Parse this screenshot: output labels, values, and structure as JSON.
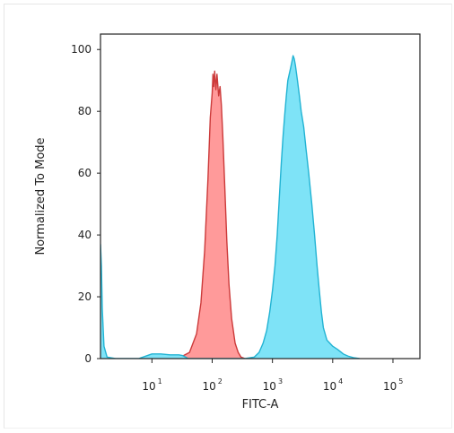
{
  "chart_data": {
    "type": "area",
    "title": "",
    "xlabel": "FITC-A",
    "ylabel": "Normalized To Mode",
    "xscale": "log",
    "xlim": [
      1.4,
      280000
    ],
    "ylim": [
      0,
      105
    ],
    "grid": false,
    "legend": "none",
    "y_ticks": [
      {
        "value": 0,
        "label": "0"
      },
      {
        "value": 20,
        "label": "20"
      },
      {
        "value": 40,
        "label": "40"
      },
      {
        "value": 60,
        "label": "60"
      },
      {
        "value": 80,
        "label": "80"
      },
      {
        "value": 100,
        "label": "100"
      }
    ],
    "x_ticks": [
      {
        "value": 10,
        "base": "10",
        "exp": "1"
      },
      {
        "value": 100,
        "base": "10",
        "exp": "2"
      },
      {
        "value": 1000,
        "base": "10",
        "exp": "3"
      },
      {
        "value": 10000,
        "base": "10",
        "exp": "4"
      },
      {
        "value": 100000,
        "base": "10",
        "exp": "5"
      }
    ],
    "series": [
      {
        "color": "#ff9a9a",
        "stroke": "#cc3a3a",
        "x": [
          20,
          30,
          42,
          55,
          65,
          75,
          85,
          93,
          100,
          103,
          106,
          110,
          115,
          120,
          128,
          135,
          142,
          150,
          160,
          175,
          190,
          210,
          240,
          270,
          300,
          350
        ],
        "y": [
          0,
          0.5,
          2,
          8,
          18,
          35,
          58,
          78,
          86,
          92,
          88,
          93,
          87,
          92,
          85,
          88,
          82,
          72,
          58,
          38,
          24,
          13,
          5,
          2,
          0.5,
          0
        ]
      },
      {
        "color": "#7ee3f7",
        "stroke": "#22b3d3",
        "x": [
          1.4,
          1.45,
          1.5,
          1.6,
          1.8,
          2.5,
          4,
          6,
          10,
          14,
          20,
          28,
          32,
          36,
          40,
          60,
          100,
          200,
          350,
          500,
          600,
          700,
          800,
          900,
          1000,
          1100,
          1200,
          1300,
          1400,
          1500,
          1600,
          1700,
          1800,
          2000,
          2100,
          2200,
          2300,
          2400,
          2600,
          2800,
          3000,
          3300,
          3600,
          4000,
          4500,
          5000,
          5500,
          6000,
          6500,
          7000,
          8000,
          10000,
          12000,
          15000,
          18000,
          22000,
          28000
        ],
        "y": [
          37,
          30,
          16,
          4,
          0.5,
          0,
          0,
          0,
          1.5,
          1.5,
          1.2,
          1.2,
          1,
          0.5,
          0,
          0,
          0,
          0,
          0,
          0.5,
          2,
          5,
          9,
          15,
          22,
          30,
          40,
          52,
          63,
          72,
          79,
          85,
          90,
          94,
          96,
          98,
          97,
          95,
          90,
          85,
          80,
          75,
          68,
          60,
          50,
          40,
          30,
          22,
          15,
          10,
          6,
          4,
          3,
          1.5,
          0.8,
          0.3,
          0
        ]
      }
    ]
  }
}
